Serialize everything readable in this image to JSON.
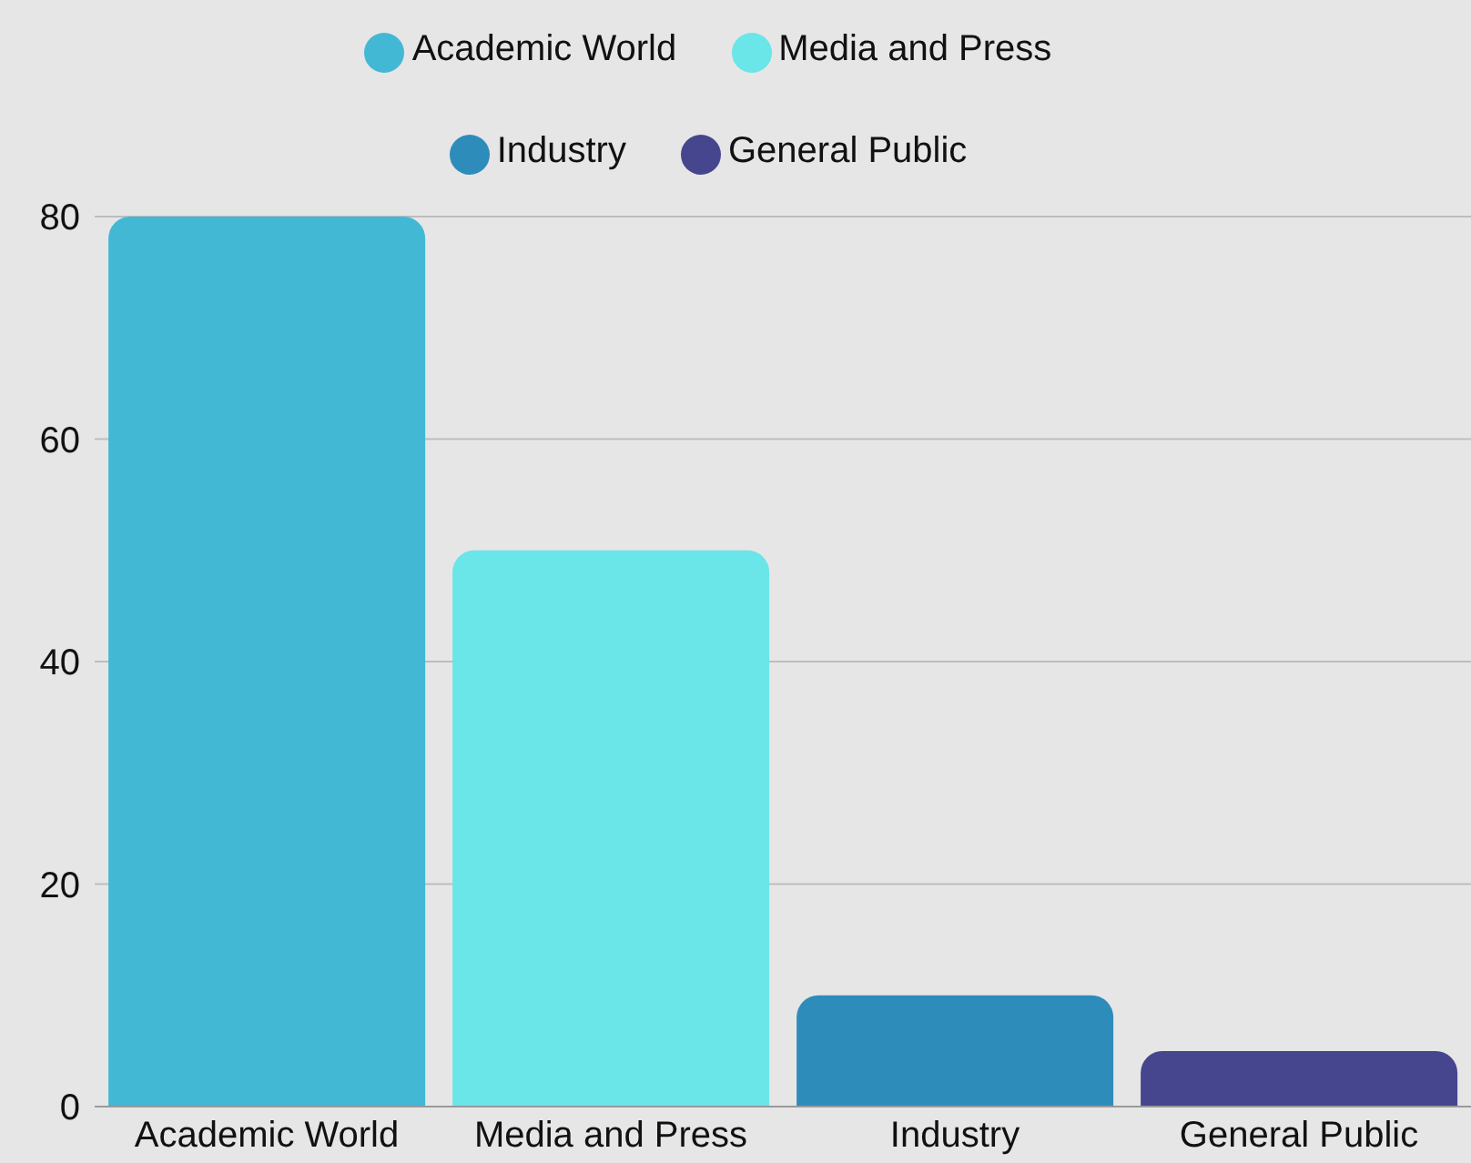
{
  "chart_data": {
    "type": "bar",
    "stacked": true,
    "categories": [
      "Academic World",
      "Media and Press",
      "Industry",
      "General Public"
    ],
    "series": [
      {
        "name": "Academic World",
        "color": "#42b8d5",
        "values": [
          80,
          null,
          null,
          null
        ]
      },
      {
        "name": "Media and Press",
        "color": "#6ae5e8",
        "values": [
          null,
          50,
          null,
          null
        ]
      },
      {
        "name": "Industry",
        "color": "#2e8cba",
        "values": [
          null,
          null,
          10,
          null
        ]
      },
      {
        "name": "General Public",
        "color": "#46468f",
        "values": [
          null,
          null,
          null,
          5
        ]
      }
    ],
    "ylim": [
      0,
      80
    ],
    "yticks": [
      0,
      20,
      40,
      60,
      80
    ],
    "grid": "y",
    "legend": "top"
  }
}
